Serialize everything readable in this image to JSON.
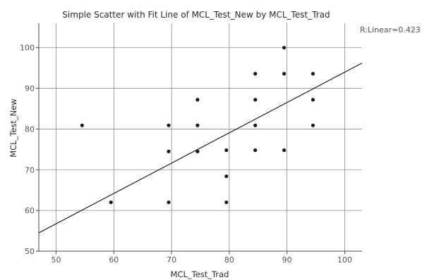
{
  "chart_data": {
    "type": "scatter",
    "title": "Simple Scatter with Fit Line of MCL_Test_New by MCL_Test_Trad",
    "xlabel": "MCL_Test_Trad",
    "ylabel": "MCL_Test_New",
    "xlim": [
      47,
      103
    ],
    "ylim": [
      50,
      106
    ],
    "x_ticks": [
      50,
      60,
      70,
      80,
      90,
      100
    ],
    "y_ticks": [
      50,
      60,
      70,
      80,
      90,
      100
    ],
    "grid": true,
    "annotation": "R:Linear=0.423",
    "points": [
      {
        "x": 54.5,
        "y": 80.9
      },
      {
        "x": 59.5,
        "y": 62.0
      },
      {
        "x": 69.5,
        "y": 80.9
      },
      {
        "x": 69.5,
        "y": 74.5
      },
      {
        "x": 69.5,
        "y": 62.0
      },
      {
        "x": 74.5,
        "y": 87.2
      },
      {
        "x": 74.5,
        "y": 80.9
      },
      {
        "x": 74.5,
        "y": 74.5
      },
      {
        "x": 79.5,
        "y": 74.8
      },
      {
        "x": 79.5,
        "y": 68.4
      },
      {
        "x": 79.5,
        "y": 62.0
      },
      {
        "x": 84.5,
        "y": 93.6
      },
      {
        "x": 84.5,
        "y": 87.2
      },
      {
        "x": 84.5,
        "y": 80.9
      },
      {
        "x": 84.5,
        "y": 74.8
      },
      {
        "x": 89.5,
        "y": 100.0
      },
      {
        "x": 89.5,
        "y": 93.6
      },
      {
        "x": 89.5,
        "y": 74.8
      },
      {
        "x": 94.5,
        "y": 93.6
      },
      {
        "x": 94.5,
        "y": 87.2
      },
      {
        "x": 94.5,
        "y": 80.9
      }
    ],
    "fit_line": {
      "x": [
        47,
        103
      ],
      "y": [
        54.5,
        96.2
      ]
    }
  }
}
